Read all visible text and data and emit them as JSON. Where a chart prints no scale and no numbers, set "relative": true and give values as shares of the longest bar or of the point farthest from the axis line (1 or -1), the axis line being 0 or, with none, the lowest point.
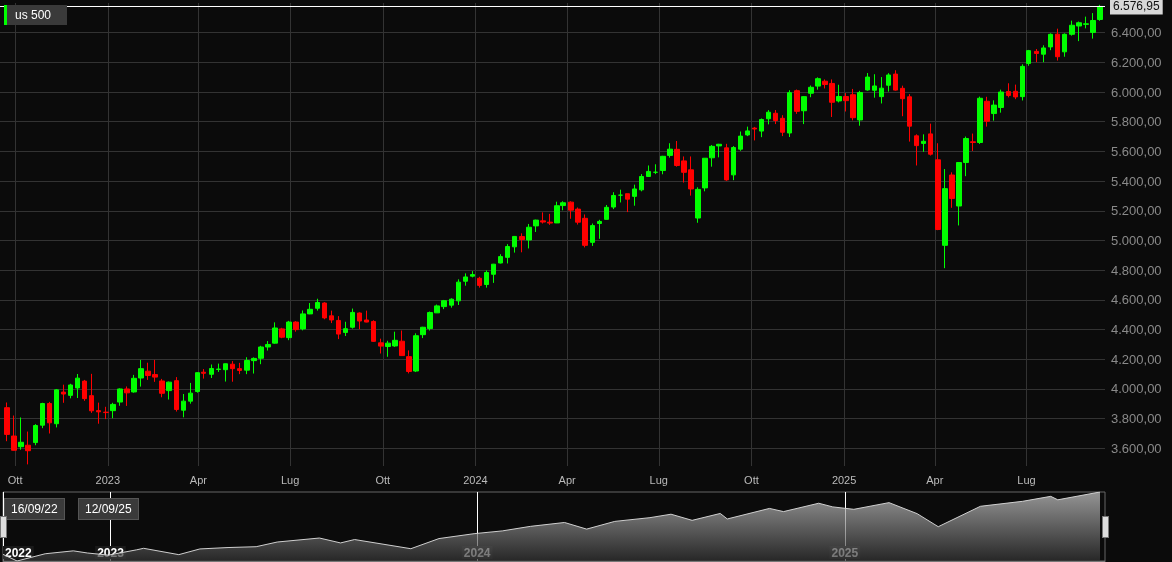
{
  "chart_data": [
    {
      "type": "candlestick",
      "title": "us 500",
      "colors": [
        "#ff0000",
        "#ff0000",
        "#00ff00",
        "#ff0000",
        "#00ff00",
        "#00ff00",
        "#ff0000",
        "#00ff00",
        "#ff0000",
        "#00ff00",
        "#00ff00",
        "#ff0000",
        "#ff0000",
        "#ff0000",
        "#ff0000",
        "#00ff00",
        "#00ff00",
        "#ff0000",
        "#00ff00",
        "#00ff00",
        "#ff0000",
        "#ff0000",
        "#ff0000",
        "#00ff00",
        "#ff0000",
        "#00ff00",
        "#00ff00",
        "#00ff00",
        "#ff0000",
        "#00ff00",
        "#00ff00",
        "#00ff00",
        "#ff0000",
        "#ff0000",
        "#00ff00",
        "#00ff00",
        "#00ff00",
        "#00ff00",
        "#00ff00",
        "#ff0000",
        "#00ff00",
        "#ff0000",
        "#00ff00",
        "#00ff00",
        "#00ff00",
        "#ff0000",
        "#ff0000",
        "#ff0000",
        "#00ff00",
        "#00ff00",
        "#ff0000",
        "#ff0000",
        "#ff0000",
        "#ff0000",
        "#00ff00",
        "#00ff00",
        "#ff0000",
        "#ff0000",
        "#00ff00",
        "#00ff00",
        "#00ff00",
        "#00ff00",
        "#00ff00",
        "#00ff00",
        "#00ff00",
        "#00ff00",
        "#00ff00",
        "#ff0000",
        "#00ff00",
        "#00ff00",
        "#00ff00",
        "#00ff00",
        "#00ff00",
        "#ff0000",
        "#00ff00",
        "#00ff00",
        "#ff0000",
        "#ff0000",
        "#00ff00",
        "#00ff00",
        "#ff0000",
        "#ff0000",
        "#ff0000",
        "#00ff00",
        "#00ff00",
        "#00ff00",
        "#00ff00",
        "#00ff00",
        "#ff0000",
        "#00ff00",
        "#00ff00",
        "#00ff00",
        "#00ff00",
        "#00ff00",
        "#00ff00",
        "#ff0000",
        "#ff0000",
        "#ff0000",
        "#00ff00",
        "#00ff00",
        "#00ff00",
        "#00ff00",
        "#ff0000",
        "#00ff00",
        "#00ff00",
        "#00ff00",
        "#ff0000",
        "#00ff00",
        "#00ff00",
        "#ff0000",
        "#ff0000",
        "#00ff00",
        "#ff0000",
        "#00ff00",
        "#00ff00",
        "#00ff00",
        "#ff0000",
        "#ff0000",
        "#00ff00",
        "#ff0000",
        "#ff0000",
        "#00ff00",
        "#00ff00",
        "#00ff00",
        "#00ff00",
        "#00ff00",
        "#ff0000",
        "#ff0000",
        "#ff0000",
        "#ff0000",
        "#00ff00",
        "#ff0000",
        "#ff0000",
        "#00ff00",
        "#ff0000",
        "#00ff00",
        "#00ff00",
        "#ff0000",
        "#00ff00",
        "#ff0000",
        "#00ff00",
        "#00ff00",
        "#ff0000",
        "#ff0000",
        "#00ff00",
        "#00ff00",
        "#ff0000",
        "#00ff00",
        "#00ff00",
        "#ff0000",
        "#00ff00",
        "#00ff00",
        "#00ff00",
        "#00ff00",
        "#00ff00",
        "#00ff00"
      ],
      "x": [
        "2022-09-23",
        "2022-09-30",
        "2022-10-07",
        "2022-10-14",
        "2022-10-21",
        "2022-10-28",
        "2022-11-04",
        "2022-11-11",
        "2022-11-18",
        "2022-11-25",
        "2022-12-02",
        "2022-12-09",
        "2022-12-16",
        "2022-12-23",
        "2022-12-30",
        "2023-01-06",
        "2023-01-13",
        "2023-01-20",
        "2023-01-27",
        "2023-02-03",
        "2023-02-10",
        "2023-02-17",
        "2023-02-24",
        "2023-03-03",
        "2023-03-10",
        "2023-03-17",
        "2023-03-24",
        "2023-03-31",
        "2023-04-06",
        "2023-04-14",
        "2023-04-21",
        "2023-04-28",
        "2023-05-05",
        "2023-05-12",
        "2023-05-19",
        "2023-05-26",
        "2023-06-02",
        "2023-06-09",
        "2023-06-16",
        "2023-06-23",
        "2023-06-30",
        "2023-07-07",
        "2023-07-14",
        "2023-07-21",
        "2023-07-28",
        "2023-08-04",
        "2023-08-11",
        "2023-08-18",
        "2023-08-25",
        "2023-09-01",
        "2023-09-08",
        "2023-09-15",
        "2023-09-22",
        "2023-09-29",
        "2023-10-06",
        "2023-10-13",
        "2023-10-20",
        "2023-10-27",
        "2023-11-03",
        "2023-11-10",
        "2023-11-17",
        "2023-11-24",
        "2023-12-01",
        "2023-12-08",
        "2023-12-15",
        "2023-12-22",
        "2023-12-29",
        "2024-01-05",
        "2024-01-12",
        "2024-01-19",
        "2024-01-26",
        "2024-02-02",
        "2024-02-09",
        "2024-02-16",
        "2024-02-23",
        "2024-03-01",
        "2024-03-08",
        "2024-03-15",
        "2024-03-22",
        "2024-03-28",
        "2024-04-05",
        "2024-04-12",
        "2024-04-19",
        "2024-04-26",
        "2024-05-03",
        "2024-05-10",
        "2024-05-17",
        "2024-05-24",
        "2024-05-31",
        "2024-06-07",
        "2024-06-14",
        "2024-06-21",
        "2024-06-28",
        "2024-07-05",
        "2024-07-12",
        "2024-07-19",
        "2024-07-26",
        "2024-08-02",
        "2024-08-09",
        "2024-08-16",
        "2024-08-23",
        "2024-08-30",
        "2024-09-06",
        "2024-09-13",
        "2024-09-20",
        "2024-09-27",
        "2024-10-04",
        "2024-10-11",
        "2024-10-18",
        "2024-10-25",
        "2024-11-01",
        "2024-11-08",
        "2024-11-15",
        "2024-11-22",
        "2024-11-29",
        "2024-12-06",
        "2024-12-13",
        "2024-12-20",
        "2024-12-27",
        "2025-01-03",
        "2025-01-10",
        "2025-01-17",
        "2025-01-24",
        "2025-01-31",
        "2025-02-07",
        "2025-02-14",
        "2025-02-21",
        "2025-02-28",
        "2025-03-07",
        "2025-03-14",
        "2025-03-21",
        "2025-03-28",
        "2025-04-04",
        "2025-04-11",
        "2025-04-18",
        "2025-04-25",
        "2025-05-02",
        "2025-05-09",
        "2025-05-16",
        "2025-05-23",
        "2025-05-30",
        "2025-06-06",
        "2025-06-13",
        "2025-06-20",
        "2025-06-27",
        "2025-07-03",
        "2025-07-11",
        "2025-07-18",
        "2025-07-25",
        "2025-08-01",
        "2025-08-08",
        "2025-08-15",
        "2025-08-22",
        "2025-08-29",
        "2025-09-05",
        "2025-09-12"
      ],
      "ohlc": [
        [
          3873,
          3908,
          3647,
          3693
        ],
        [
          3682,
          3820,
          3584,
          3586
        ],
        [
          3610,
          3807,
          3590,
          3640
        ],
        [
          3620,
          3712,
          3491,
          3583
        ],
        [
          3638,
          3762,
          3620,
          3753
        ],
        [
          3755,
          3906,
          3735,
          3901
        ],
        [
          3901,
          3912,
          3699,
          3771
        ],
        [
          3765,
          3999,
          3740,
          3993
        ],
        [
          3978,
          4028,
          3906,
          3965
        ],
        [
          3956,
          4034,
          3936,
          4026
        ],
        [
          4006,
          4100,
          3938,
          4072
        ],
        [
          4052,
          4060,
          3919,
          3934
        ],
        [
          3954,
          4101,
          3838,
          3852
        ],
        [
          3853,
          3907,
          3765,
          3845
        ],
        [
          3843,
          3879,
          3796,
          3840
        ],
        [
          3853,
          3906,
          3802,
          3895
        ],
        [
          3911,
          4003,
          3886,
          3999
        ],
        [
          3999,
          4016,
          3885,
          3973
        ],
        [
          3979,
          4094,
          3974,
          4071
        ],
        [
          4073,
          4195,
          4015,
          4136
        ],
        [
          4119,
          4176,
          4060,
          4090
        ],
        [
          4096,
          4195,
          4047,
          4079
        ],
        [
          4053,
          4067,
          3943,
          3970
        ],
        [
          3988,
          4049,
          3928,
          4045
        ],
        [
          4055,
          4079,
          3847,
          3861
        ],
        [
          3856,
          3965,
          3808,
          3917
        ],
        [
          3917,
          4040,
          3900,
          3971
        ],
        [
          3982,
          4110,
          3974,
          4109
        ],
        [
          4112,
          4133,
          4069,
          4105
        ],
        [
          4098,
          4164,
          4073,
          4137
        ],
        [
          4131,
          4170,
          4114,
          4133
        ],
        [
          4129,
          4170,
          4049,
          4169
        ],
        [
          4166,
          4187,
          4048,
          4136
        ],
        [
          4136,
          4175,
          4099,
          4124
        ],
        [
          4126,
          4213,
          4099,
          4191
        ],
        [
          4190,
          4212,
          4103,
          4205
        ],
        [
          4206,
          4290,
          4166,
          4282
        ],
        [
          4282,
          4322,
          4258,
          4299
        ],
        [
          4308,
          4448,
          4304,
          4410
        ],
        [
          4404,
          4411,
          4341,
          4348
        ],
        [
          4345,
          4458,
          4328,
          4450
        ],
        [
          4450,
          4456,
          4385,
          4399
        ],
        [
          4404,
          4528,
          4394,
          4505
        ],
        [
          4505,
          4578,
          4503,
          4536
        ],
        [
          4543,
          4607,
          4527,
          4582
        ],
        [
          4578,
          4584,
          4469,
          4478
        ],
        [
          4492,
          4527,
          4443,
          4464
        ],
        [
          4461,
          4490,
          4335,
          4369
        ],
        [
          4380,
          4452,
          4356,
          4405
        ],
        [
          4415,
          4541,
          4406,
          4515
        ],
        [
          4511,
          4515,
          4402,
          4457
        ],
        [
          4464,
          4527,
          4448,
          4450
        ],
        [
          4454,
          4462,
          4316,
          4320
        ],
        [
          4310,
          4338,
          4238,
          4288
        ],
        [
          4285,
          4324,
          4216,
          4308
        ],
        [
          4289,
          4385,
          4283,
          4327
        ],
        [
          4321,
          4393,
          4223,
          4224
        ],
        [
          4217,
          4259,
          4104,
          4117
        ],
        [
          4120,
          4374,
          4113,
          4358
        ],
        [
          4365,
          4418,
          4342,
          4415
        ],
        [
          4406,
          4521,
          4393,
          4514
        ],
        [
          4512,
          4568,
          4511,
          4559
        ],
        [
          4554,
          4599,
          4537,
          4594
        ],
        [
          4564,
          4610,
          4547,
          4604
        ],
        [
          4593,
          4738,
          4565,
          4719
        ],
        [
          4725,
          4778,
          4695,
          4754
        ],
        [
          4759,
          4793,
          4751,
          4770
        ],
        [
          4745,
          4755,
          4682,
          4697
        ],
        [
          4703,
          4798,
          4682,
          4784
        ],
        [
          4772,
          4842,
          4714,
          4840
        ],
        [
          4848,
          4907,
          4845,
          4891
        ],
        [
          4886,
          4975,
          4845,
          4959
        ],
        [
          4957,
          5030,
          4918,
          5027
        ],
        [
          5026,
          5048,
          4920,
          5006
        ],
        [
          5003,
          5111,
          4946,
          5089
        ],
        [
          5098,
          5140,
          5057,
          5137
        ],
        [
          5132,
          5189,
          5114,
          5124
        ],
        [
          5123,
          5179,
          5105,
          5117
        ],
        [
          5118,
          5261,
          5117,
          5234
        ],
        [
          5235,
          5264,
          5203,
          5254
        ],
        [
          5258,
          5264,
          5146,
          5204
        ],
        [
          5211,
          5222,
          5107,
          5123
        ],
        [
          5149,
          5175,
          4953,
          4967
        ],
        [
          4987,
          5114,
          4963,
          5100
        ],
        [
          5114,
          5139,
          5011,
          5128
        ],
        [
          5142,
          5239,
          5142,
          5223
        ],
        [
          5225,
          5325,
          5211,
          5303
        ],
        [
          5305,
          5342,
          5256,
          5305
        ],
        [
          5315,
          5315,
          5191,
          5278
        ],
        [
          5297,
          5376,
          5234,
          5347
        ],
        [
          5341,
          5447,
          5331,
          5431
        ],
        [
          5431,
          5505,
          5428,
          5465
        ],
        [
          5459,
          5513,
          5447,
          5460
        ],
        [
          5471,
          5570,
          5446,
          5567
        ],
        [
          5573,
          5655,
          5558,
          5615
        ],
        [
          5614,
          5670,
          5497,
          5505
        ],
        [
          5536,
          5566,
          5390,
          5459
        ],
        [
          5476,
          5566,
          5302,
          5347
        ],
        [
          5151,
          5358,
          5119,
          5344
        ],
        [
          5354,
          5555,
          5331,
          5554
        ],
        [
          5557,
          5643,
          5497,
          5634
        ],
        [
          5637,
          5651,
          5560,
          5648
        ],
        [
          5624,
          5651,
          5402,
          5408
        ],
        [
          5442,
          5636,
          5406,
          5626
        ],
        [
          5615,
          5734,
          5604,
          5703
        ],
        [
          5711,
          5767,
          5703,
          5738
        ],
        [
          5757,
          5765,
          5674,
          5751
        ],
        [
          5737,
          5822,
          5696,
          5815
        ],
        [
          5820,
          5878,
          5782,
          5864
        ],
        [
          5857,
          5879,
          5784,
          5808
        ],
        [
          5823,
          5844,
          5703,
          5729
        ],
        [
          5724,
          6012,
          5697,
          5996
        ],
        [
          6009,
          6017,
          5853,
          5870
        ],
        [
          5874,
          5972,
          5784,
          5969
        ],
        [
          5992,
          6044,
          5965,
          6032
        ],
        [
          6040,
          6099,
          6016,
          6090
        ],
        [
          6073,
          6085,
          6024,
          6051
        ],
        [
          6058,
          6085,
          5832,
          5931
        ],
        [
          5940,
          6049,
          5930,
          5970
        ],
        [
          5970,
          5993,
          5869,
          5942
        ],
        [
          5982,
          6021,
          5809,
          5827
        ],
        [
          5812,
          6008,
          5773,
          5997
        ],
        [
          6014,
          6128,
          6009,
          6101
        ],
        [
          6012,
          6120,
          5962,
          6041
        ],
        [
          5969,
          6101,
          5923,
          6026
        ],
        [
          6046,
          6127,
          6003,
          6115
        ],
        [
          6121,
          6147,
          6009,
          6013
        ],
        [
          6025,
          6043,
          5837,
          5955
        ],
        [
          5968,
          5986,
          5666,
          5770
        ],
        [
          5705,
          5715,
          5505,
          5639
        ],
        [
          5654,
          5715,
          5597,
          5668
        ],
        [
          5718,
          5787,
          5572,
          5581
        ],
        [
          5543,
          5655,
          5069,
          5074
        ],
        [
          4967,
          5481,
          4813,
          5349
        ],
        [
          5441,
          5459,
          5220,
          5283
        ],
        [
          5232,
          5528,
          5101,
          5525
        ],
        [
          5525,
          5700,
          5433,
          5687
        ],
        [
          5665,
          5720,
          5603,
          5660
        ],
        [
          5660,
          5969,
          5650,
          5958
        ],
        [
          5938,
          5968,
          5767,
          5803
        ],
        [
          5855,
          5944,
          5807,
          5912
        ],
        [
          5896,
          6016,
          5861,
          6000
        ],
        [
          6004,
          6059,
          5964,
          5977
        ],
        [
          6005,
          6050,
          5952,
          5967
        ],
        [
          5969,
          6187,
          5943,
          6173
        ],
        [
          6193,
          6284,
          6177,
          6279
        ],
        [
          6274,
          6290,
          6201,
          6260
        ],
        [
          6255,
          6315,
          6201,
          6297
        ],
        [
          6304,
          6395,
          6282,
          6389
        ],
        [
          6390,
          6427,
          6212,
          6238
        ],
        [
          6271,
          6395,
          6238,
          6389
        ],
        [
          6389,
          6481,
          6380,
          6450
        ],
        [
          6445,
          6475,
          6343,
          6467
        ],
        [
          6456,
          6508,
          6429,
          6460
        ],
        [
          6402,
          6532,
          6360,
          6482
        ],
        [
          6489,
          6587,
          6480,
          6576.95
        ]
      ],
      "xlim": [
        "2022-09-16",
        "2025-09-17"
      ],
      "xticks": [
        {
          "value": "2022-10-01",
          "label": "Ott"
        },
        {
          "value": "2023-01-01",
          "label": "2023"
        },
        {
          "value": "2023-04-01",
          "label": "Apr"
        },
        {
          "value": "2023-07-01",
          "label": "Lug"
        },
        {
          "value": "2023-10-01",
          "label": "Ott"
        },
        {
          "value": "2024-01-01",
          "label": "2024"
        },
        {
          "value": "2024-04-01",
          "label": "Apr"
        },
        {
          "value": "2024-07-01",
          "label": "Lug"
        },
        {
          "value": "2024-10-01",
          "label": "Ott"
        },
        {
          "value": "2025-01-01",
          "label": "2025"
        },
        {
          "value": "2025-04-01",
          "label": "Apr"
        },
        {
          "value": "2025-07-01",
          "label": "Lug"
        }
      ],
      "ylim": [
        3480,
        6600
      ],
      "yticks": [
        {
          "value": 3600,
          "label": "3.600,00"
        },
        {
          "value": 3800,
          "label": "3.800,00"
        },
        {
          "value": 4000,
          "label": "4.000,00"
        },
        {
          "value": 4200,
          "label": "4.200,00"
        },
        {
          "value": 4400,
          "label": "4.400,00"
        },
        {
          "value": 4600,
          "label": "4.600,00"
        },
        {
          "value": 4800,
          "label": "4.800,00"
        },
        {
          "value": 5000,
          "label": "5.000,00"
        },
        {
          "value": 5200,
          "label": "5.200,00"
        },
        {
          "value": 5400,
          "label": "5.400,00"
        },
        {
          "value": 5600,
          "label": "5.600,00"
        },
        {
          "value": 5800,
          "label": "5.800,00"
        },
        {
          "value": 6000,
          "label": "6.000,00"
        },
        {
          "value": 6200,
          "label": "6.200,00"
        },
        {
          "value": 6400,
          "label": "6.400,00"
        }
      ],
      "ref_lines": [
        {
          "axis": "y",
          "value": 6576.95,
          "label": "6.576,95",
          "color": "#ffffff"
        }
      ],
      "grid": true
    },
    {
      "type": "area",
      "relative": true,
      "grid": "x",
      "color": "#cfcfcf",
      "x": [
        "2022-09-16",
        "2022-09-30",
        "2022-10-28",
        "2022-11-25",
        "2022-12-09",
        "2022-12-30",
        "2023-01-27",
        "2023-02-03",
        "2023-03-10",
        "2023-03-31",
        "2023-04-28",
        "2023-05-26",
        "2023-06-16",
        "2023-07-28",
        "2023-08-18",
        "2023-09-01",
        "2023-10-27",
        "2023-11-24",
        "2023-12-29",
        "2024-01-26",
        "2024-02-23",
        "2024-03-28",
        "2024-04-19",
        "2024-05-17",
        "2024-06-21",
        "2024-07-12",
        "2024-08-02",
        "2024-08-30",
        "2024-09-06",
        "2024-10-18",
        "2024-11-01",
        "2024-12-06",
        "2024-12-20",
        "2025-01-10",
        "2025-02-14",
        "2025-03-14",
        "2025-04-04",
        "2025-05-16",
        "2025-06-27",
        "2025-07-25",
        "2025-08-01",
        "2025-09-12"
      ],
      "values": [
        0.096,
        0,
        0.105,
        0.147,
        0.116,
        0.085,
        0.162,
        0.184,
        0.092,
        0.175,
        0.195,
        0.207,
        0.275,
        0.333,
        0.262,
        0.311,
        0.178,
        0.325,
        0.396,
        0.436,
        0.502,
        0.558,
        0.462,
        0.574,
        0.628,
        0.678,
        0.589,
        0.689,
        0.609,
        0.762,
        0.716,
        0.837,
        0.784,
        0.749,
        0.846,
        0.686,
        0.497,
        0.793,
        0.865,
        0.937,
        0.887,
        1
      ],
      "xlim": [
        "2022-09-16",
        "2025-09-17"
      ],
      "xticks": [
        {
          "value": "2022-09-16",
          "label": "2022"
        },
        {
          "value": "2023-01-01",
          "label": "2023"
        },
        {
          "value": "2024-01-01",
          "label": "2024"
        },
        {
          "value": "2025-01-01",
          "label": "2025"
        }
      ],
      "annotations": [
        "16/09/22",
        "12/09/25"
      ]
    }
  ]
}
